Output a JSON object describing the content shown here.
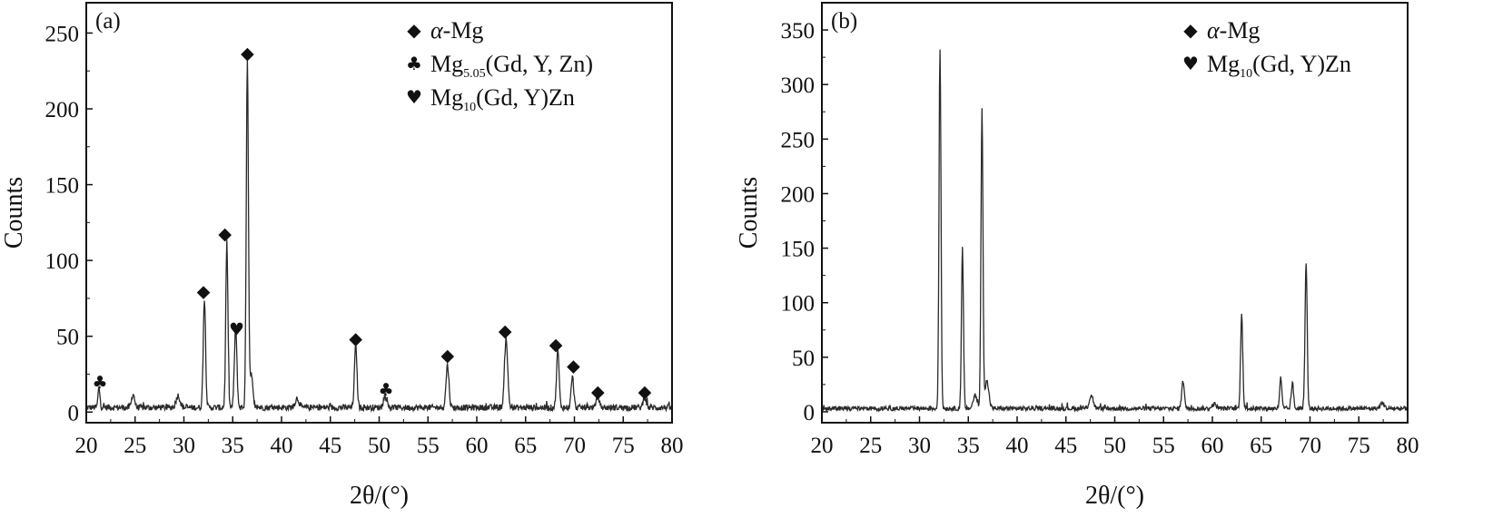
{
  "colors": {
    "line": "#2a2a2a",
    "frame": "#111111",
    "background": "#ffffff"
  },
  "chart_data": [
    {
      "type": "line",
      "panel_label": "(a)",
      "xlabel": "2θ/(°)",
      "ylabel": "Counts",
      "xlim": [
        20,
        80
      ],
      "ylim": [
        -7,
        270
      ],
      "xticks": [
        20,
        25,
        30,
        35,
        40,
        45,
        50,
        55,
        60,
        65,
        70,
        75,
        80
      ],
      "yticks": [
        0,
        50,
        100,
        150,
        200,
        250
      ],
      "baseline": 3,
      "peaks": [
        {
          "x": 21.3,
          "y": 13,
          "w": 0.1
        },
        {
          "x": 24.8,
          "y": 9,
          "w": 0.15
        },
        {
          "x": 29.4,
          "y": 8,
          "w": 0.2
        },
        {
          "x": 32.1,
          "y": 71,
          "w": 0.12
        },
        {
          "x": 34.4,
          "y": 109,
          "w": 0.11
        },
        {
          "x": 35.3,
          "y": 52,
          "w": 0.13
        },
        {
          "x": 36.5,
          "y": 230,
          "w": 0.11
        },
        {
          "x": 36.9,
          "y": 22,
          "w": 0.15
        },
        {
          "x": 41.6,
          "y": 6,
          "w": 0.2
        },
        {
          "x": 47.6,
          "y": 41,
          "w": 0.13
        },
        {
          "x": 50.6,
          "y": 8,
          "w": 0.15
        },
        {
          "x": 57.0,
          "y": 28,
          "w": 0.15
        },
        {
          "x": 63.0,
          "y": 46,
          "w": 0.16
        },
        {
          "x": 68.3,
          "y": 38,
          "w": 0.13
        },
        {
          "x": 69.8,
          "y": 20,
          "w": 0.13
        },
        {
          "x": 72.4,
          "y": 7,
          "w": 0.15
        },
        {
          "x": 77.2,
          "y": 7,
          "w": 0.15
        }
      ],
      "markers": [
        {
          "x": 21.4,
          "y": 20,
          "symbol": "club"
        },
        {
          "x": 32.0,
          "y": 80,
          "symbol": "diamond"
        },
        {
          "x": 34.2,
          "y": 118,
          "symbol": "diamond"
        },
        {
          "x": 35.4,
          "y": 55,
          "symbol": "heart"
        },
        {
          "x": 36.5,
          "y": 237,
          "symbol": "diamond"
        },
        {
          "x": 47.6,
          "y": 49,
          "symbol": "diamond"
        },
        {
          "x": 50.7,
          "y": 15,
          "symbol": "club"
        },
        {
          "x": 57.0,
          "y": 38,
          "symbol": "diamond"
        },
        {
          "x": 62.9,
          "y": 54,
          "symbol": "diamond"
        },
        {
          "x": 68.1,
          "y": 45,
          "symbol": "diamond"
        },
        {
          "x": 69.9,
          "y": 31,
          "symbol": "diamond"
        },
        {
          "x": 72.4,
          "y": 14,
          "symbol": "diamond"
        },
        {
          "x": 77.2,
          "y": 14,
          "symbol": "diamond"
        }
      ],
      "legend": [
        {
          "symbol": "diamond",
          "prefix": "α",
          "main": "-Mg",
          "sub": "",
          "rest": ""
        },
        {
          "symbol": "club",
          "prefix": "",
          "main": "Mg",
          "sub": "5.05",
          "rest": "(Gd, Y, Zn)"
        },
        {
          "symbol": "heart",
          "prefix": "",
          "main": "Mg",
          "sub": "10",
          "rest": "(Gd, Y)Zn"
        }
      ]
    },
    {
      "type": "line",
      "panel_label": "(b)",
      "xlabel": "2θ/(°)",
      "ylabel": "Counts",
      "xlim": [
        20,
        80
      ],
      "ylim": [
        -10,
        375
      ],
      "xticks": [
        20,
        25,
        30,
        35,
        40,
        45,
        50,
        55,
        60,
        65,
        70,
        75,
        80
      ],
      "yticks": [
        0,
        50,
        100,
        150,
        200,
        250,
        300,
        350
      ],
      "baseline": 3,
      "peaks": [
        {
          "x": 32.1,
          "y": 330,
          "w": 0.1
        },
        {
          "x": 34.4,
          "y": 147,
          "w": 0.1
        },
        {
          "x": 35.7,
          "y": 12,
          "w": 0.2
        },
        {
          "x": 36.4,
          "y": 275,
          "w": 0.1
        },
        {
          "x": 36.9,
          "y": 25,
          "w": 0.2
        },
        {
          "x": 47.6,
          "y": 12,
          "w": 0.2
        },
        {
          "x": 57.0,
          "y": 25,
          "w": 0.14
        },
        {
          "x": 60.2,
          "y": 4,
          "w": 0.2
        },
        {
          "x": 63.0,
          "y": 88,
          "w": 0.11
        },
        {
          "x": 67.0,
          "y": 28,
          "w": 0.11
        },
        {
          "x": 68.2,
          "y": 24,
          "w": 0.11
        },
        {
          "x": 69.6,
          "y": 133,
          "w": 0.11
        },
        {
          "x": 77.4,
          "y": 5,
          "w": 0.2
        }
      ],
      "markers": [],
      "legend": [
        {
          "symbol": "diamond",
          "prefix": "α",
          "main": "-Mg",
          "sub": "",
          "rest": ""
        },
        {
          "symbol": "heart",
          "prefix": "",
          "main": "Mg",
          "sub": "10",
          "rest": "(Gd, Y)Zn"
        }
      ]
    }
  ]
}
